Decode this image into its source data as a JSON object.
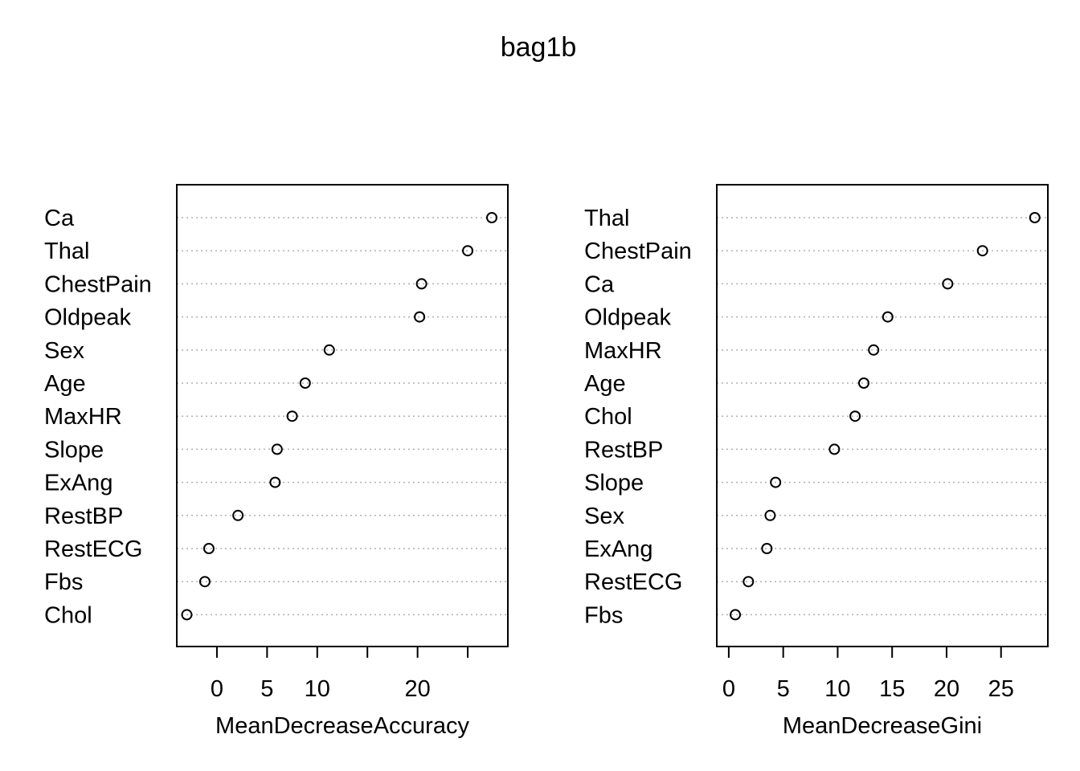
{
  "title": "bag1b",
  "chart_data": [
    {
      "type": "scatter",
      "subtype": "dotchart",
      "xlabel": "MeanDecreaseAccuracy",
      "xlim": [
        -4,
        29
      ],
      "ticks": [
        0,
        5,
        10,
        15,
        20,
        25
      ],
      "tick_labels": [
        "0",
        "5",
        "10",
        "",
        "20",
        ""
      ],
      "grid": "dotted horizontal lines",
      "categories": [
        "Ca",
        "Thal",
        "ChestPain",
        "Oldpeak",
        "Sex",
        "Age",
        "MaxHR",
        "Slope",
        "ExAng",
        "RestBP",
        "RestECG",
        "Fbs",
        "Chol"
      ],
      "values": [
        27.4,
        25.0,
        20.4,
        20.2,
        11.2,
        8.8,
        7.5,
        6.0,
        5.8,
        2.1,
        -0.8,
        -1.2,
        -3.0
      ]
    },
    {
      "type": "scatter",
      "subtype": "dotchart",
      "xlabel": "MeanDecreaseGini",
      "xlim": [
        -1.1,
        29.3
      ],
      "ticks": [
        0,
        5,
        10,
        15,
        20,
        25
      ],
      "tick_labels": [
        "0",
        "5",
        "10",
        "15",
        "20",
        "25"
      ],
      "grid": "dotted horizontal lines",
      "categories": [
        "Thal",
        "ChestPain",
        "Ca",
        "Oldpeak",
        "MaxHR",
        "Age",
        "Chol",
        "RestBP",
        "Slope",
        "Sex",
        "ExAng",
        "RestECG",
        "Fbs"
      ],
      "values": [
        28.1,
        23.3,
        20.1,
        14.6,
        13.3,
        12.4,
        11.6,
        9.7,
        4.3,
        3.8,
        3.5,
        1.8,
        0.6
      ]
    }
  ]
}
